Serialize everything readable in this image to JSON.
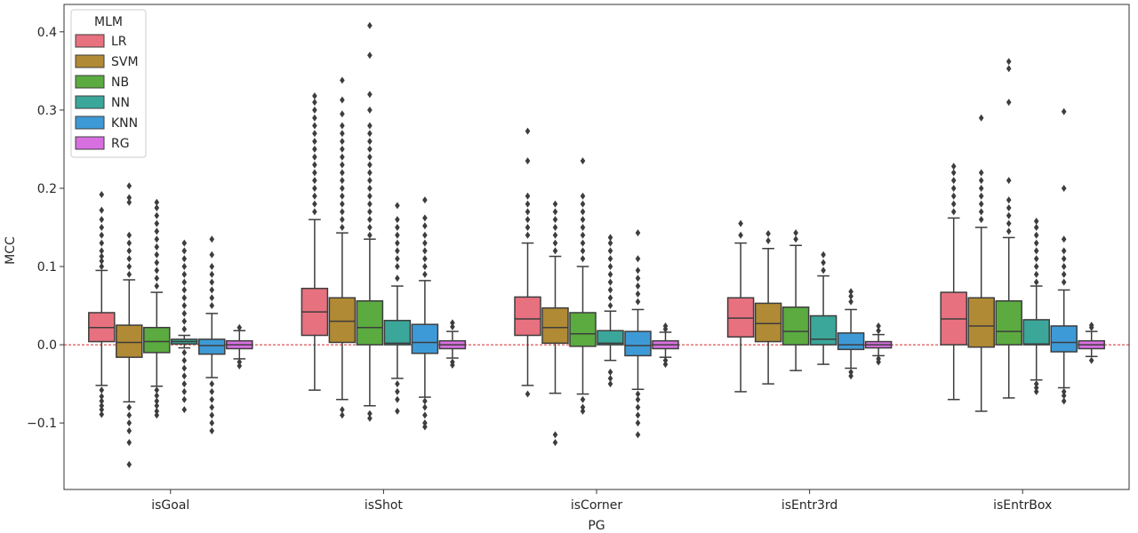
{
  "chart_data": {
    "type": "box",
    "xlabel": "PG",
    "ylabel": "MCC",
    "ylim": [
      -0.185,
      0.435
    ],
    "yticks": [
      -0.1,
      0.0,
      0.1,
      0.2,
      0.3,
      0.4
    ],
    "ytick_labels": [
      "−0.1",
      "0.0",
      "0.1",
      "0.2",
      "0.3",
      "0.4"
    ],
    "reference_line": 0.0,
    "legend": {
      "title": "MLM",
      "placement": "top-left"
    },
    "categories": [
      "isGoal",
      "isShot",
      "isCorner",
      "isEntr3rd",
      "isEntrBox"
    ],
    "series": [
      {
        "name": "LR",
        "color": "#e8717f",
        "stats": [
          {
            "q1": 0.004,
            "median": 0.022,
            "q3": 0.041,
            "wlo": -0.052,
            "whi": 0.095,
            "outliers": [
              -0.058,
              -0.066,
              -0.072,
              -0.078,
              -0.083,
              -0.089,
              0.1,
              0.107,
              0.113,
              0.12,
              0.13,
              0.14,
              0.15,
              0.16,
              0.172,
              0.192
            ]
          },
          {
            "q1": 0.012,
            "median": 0.042,
            "q3": 0.072,
            "wlo": -0.058,
            "whi": 0.16,
            "outliers": [
              0.17,
              0.18,
              0.19,
              0.2,
              0.21,
              0.22,
              0.23,
              0.24,
              0.25,
              0.26,
              0.27,
              0.28,
              0.29,
              0.3,
              0.31,
              0.318
            ]
          },
          {
            "q1": 0.012,
            "median": 0.033,
            "q3": 0.061,
            "wlo": -0.052,
            "whi": 0.13,
            "outliers": [
              -0.063,
              0.14,
              0.15,
              0.16,
              0.17,
              0.18,
              0.19,
              0.235,
              0.273
            ]
          },
          {
            "q1": 0.01,
            "median": 0.034,
            "q3": 0.06,
            "wlo": -0.06,
            "whi": 0.13,
            "outliers": [
              0.14,
              0.155
            ]
          },
          {
            "q1": 0.0,
            "median": 0.033,
            "q3": 0.067,
            "wlo": -0.07,
            "whi": 0.162,
            "outliers": [
              0.17,
              0.18,
              0.19,
              0.2,
              0.21,
              0.22,
              0.228
            ]
          }
        ]
      },
      {
        "name": "SVM",
        "color": "#b08a34",
        "stats": [
          {
            "q1": -0.016,
            "median": 0.003,
            "q3": 0.025,
            "wlo": -0.073,
            "whi": 0.083,
            "outliers": [
              -0.08,
              -0.09,
              -0.1,
              -0.11,
              -0.125,
              -0.153,
              0.09,
              0.1,
              0.11,
              0.12,
              0.13,
              0.14,
              0.182,
              0.188,
              0.203
            ]
          },
          {
            "q1": 0.003,
            "median": 0.03,
            "q3": 0.06,
            "wlo": -0.07,
            "whi": 0.143,
            "outliers": [
              -0.083,
              -0.09,
              0.15,
              0.16,
              0.17,
              0.18,
              0.19,
              0.2,
              0.21,
              0.22,
              0.23,
              0.24,
              0.25,
              0.26,
              0.27,
              0.28,
              0.295,
              0.313,
              0.338
            ]
          },
          {
            "q1": 0.002,
            "median": 0.022,
            "q3": 0.047,
            "wlo": -0.062,
            "whi": 0.113,
            "outliers": [
              -0.115,
              -0.125,
              0.12,
              0.13,
              0.14,
              0.15,
              0.16,
              0.17,
              0.18
            ]
          },
          {
            "q1": 0.004,
            "median": 0.027,
            "q3": 0.053,
            "wlo": -0.05,
            "whi": 0.123,
            "outliers": [
              0.133,
              0.142
            ]
          },
          {
            "q1": -0.003,
            "median": 0.024,
            "q3": 0.06,
            "wlo": -0.085,
            "whi": 0.15,
            "outliers": [
              0.16,
              0.17,
              0.18,
              0.19,
              0.2,
              0.21,
              0.22,
              0.29
            ]
          }
        ]
      },
      {
        "name": "NB",
        "color": "#5bab40",
        "stats": [
          {
            "q1": -0.01,
            "median": 0.004,
            "q3": 0.022,
            "wlo": -0.053,
            "whi": 0.067,
            "outliers": [
              -0.058,
              -0.065,
              -0.072,
              -0.078,
              -0.085,
              -0.09,
              0.075,
              0.085,
              0.095,
              0.105,
              0.115,
              0.125,
              0.135,
              0.145,
              0.155,
              0.165,
              0.175,
              0.182
            ]
          },
          {
            "q1": 0.0,
            "median": 0.022,
            "q3": 0.056,
            "wlo": -0.078,
            "whi": 0.135,
            "outliers": [
              -0.088,
              -0.094,
              0.14,
              0.15,
              0.16,
              0.17,
              0.18,
              0.19,
              0.2,
              0.21,
              0.22,
              0.23,
              0.24,
              0.25,
              0.26,
              0.27,
              0.28,
              0.3,
              0.32,
              0.37,
              0.408
            ]
          },
          {
            "q1": -0.002,
            "median": 0.014,
            "q3": 0.041,
            "wlo": -0.063,
            "whi": 0.1,
            "outliers": [
              -0.07,
              -0.08,
              -0.085,
              0.11,
              0.12,
              0.13,
              0.14,
              0.15,
              0.16,
              0.17,
              0.18,
              0.19,
              0.235
            ]
          },
          {
            "q1": 0.0,
            "median": 0.017,
            "q3": 0.048,
            "wlo": -0.033,
            "whi": 0.127,
            "outliers": [
              0.135,
              0.143
            ]
          },
          {
            "q1": 0.0,
            "median": 0.017,
            "q3": 0.056,
            "wlo": -0.068,
            "whi": 0.137,
            "outliers": [
              0.145,
              0.155,
              0.165,
              0.175,
              0.185,
              0.21,
              0.31,
              0.353,
              0.362
            ]
          }
        ]
      },
      {
        "name": "NN",
        "color": "#3aa79a",
        "stats": [
          {
            "q1": 0.001,
            "median": 0.004,
            "q3": 0.007,
            "wlo": -0.004,
            "whi": 0.012,
            "outliers": [
              -0.01,
              -0.02,
              -0.03,
              -0.04,
              -0.05,
              -0.06,
              -0.07,
              -0.083,
              0.02,
              0.03,
              0.04,
              0.05,
              0.06,
              0.07,
              0.08,
              0.09,
              0.1,
              0.11,
              0.12,
              0.13
            ]
          },
          {
            "q1": 0.0,
            "median": 0.002,
            "q3": 0.031,
            "wlo": -0.043,
            "whi": 0.075,
            "outliers": [
              -0.05,
              -0.06,
              -0.07,
              -0.085,
              0.085,
              0.1,
              0.11,
              0.12,
              0.13,
              0.14,
              0.15,
              0.16,
              0.178
            ]
          },
          {
            "q1": 0.0,
            "median": 0.002,
            "q3": 0.018,
            "wlo": -0.02,
            "whi": 0.043,
            "outliers": [
              -0.035,
              -0.043,
              -0.05,
              0.05,
              0.06,
              0.07,
              0.08,
              0.09,
              0.1,
              0.11,
              0.12,
              0.13,
              0.137
            ]
          },
          {
            "q1": 0.0,
            "median": 0.007,
            "q3": 0.037,
            "wlo": -0.025,
            "whi": 0.088,
            "outliers": [
              0.095,
              0.105,
              0.115
            ]
          },
          {
            "q1": 0.0,
            "median": 0.001,
            "q3": 0.032,
            "wlo": -0.045,
            "whi": 0.075,
            "outliers": [
              -0.05,
              -0.055,
              -0.06,
              0.08,
              0.09,
              0.1,
              0.11,
              0.12,
              0.13,
              0.14,
              0.15,
              0.158
            ]
          }
        ]
      },
      {
        "name": "KNN",
        "color": "#3e9ad6",
        "stats": [
          {
            "q1": -0.012,
            "median": -0.001,
            "q3": 0.007,
            "wlo": -0.042,
            "whi": 0.04,
            "outliers": [
              -0.05,
              -0.06,
              -0.07,
              -0.08,
              -0.09,
              -0.1,
              -0.11,
              0.05,
              0.06,
              0.07,
              0.08,
              0.09,
              0.1,
              0.115,
              0.135
            ]
          },
          {
            "q1": -0.011,
            "median": 0.003,
            "q3": 0.026,
            "wlo": -0.067,
            "whi": 0.082,
            "outliers": [
              -0.072,
              -0.08,
              -0.09,
              -0.1,
              -0.105,
              0.09,
              0.1,
              0.11,
              0.12,
              0.13,
              0.14,
              0.152,
              0.162,
              0.185
            ]
          },
          {
            "q1": -0.014,
            "median": -0.001,
            "q3": 0.017,
            "wlo": -0.057,
            "whi": 0.045,
            "outliers": [
              -0.063,
              -0.07,
              -0.08,
              -0.09,
              -0.1,
              -0.115,
              0.055,
              0.065,
              0.075,
              0.085,
              0.095,
              0.11,
              0.143
            ]
          },
          {
            "q1": -0.006,
            "median": 0.0,
            "q3": 0.015,
            "wlo": -0.03,
            "whi": 0.045,
            "outliers": [
              -0.035,
              -0.04,
              0.055,
              0.062,
              0.068
            ]
          },
          {
            "q1": -0.009,
            "median": 0.003,
            "q3": 0.024,
            "wlo": -0.055,
            "whi": 0.07,
            "outliers": [
              -0.06,
              -0.065,
              -0.072,
              0.08,
              0.09,
              0.1,
              0.11,
              0.12,
              0.135,
              0.2,
              0.298
            ]
          }
        ]
      },
      {
        "name": "RG",
        "color": "#d86fe0",
        "stats": [
          {
            "q1": -0.005,
            "median": 0.0,
            "q3": 0.005,
            "wlo": -0.018,
            "whi": 0.018,
            "outliers": [
              -0.022,
              -0.027,
              0.022
            ]
          },
          {
            "q1": -0.005,
            "median": 0.0,
            "q3": 0.005,
            "wlo": -0.017,
            "whi": 0.017,
            "outliers": [
              -0.022,
              -0.026,
              0.023,
              0.028
            ]
          },
          {
            "q1": -0.005,
            "median": 0.0,
            "q3": 0.005,
            "wlo": -0.016,
            "whi": 0.016,
            "outliers": [
              -0.02,
              -0.025,
              0.02,
              0.024
            ]
          },
          {
            "q1": -0.004,
            "median": 0.0,
            "q3": 0.004,
            "wlo": -0.014,
            "whi": 0.013,
            "outliers": [
              -0.018,
              -0.022,
              0.018,
              0.024
            ]
          },
          {
            "q1": -0.005,
            "median": 0.0,
            "q3": 0.005,
            "wlo": -0.015,
            "whi": 0.017,
            "outliers": [
              -0.02,
              0.022,
              0.025
            ]
          }
        ]
      }
    ]
  }
}
